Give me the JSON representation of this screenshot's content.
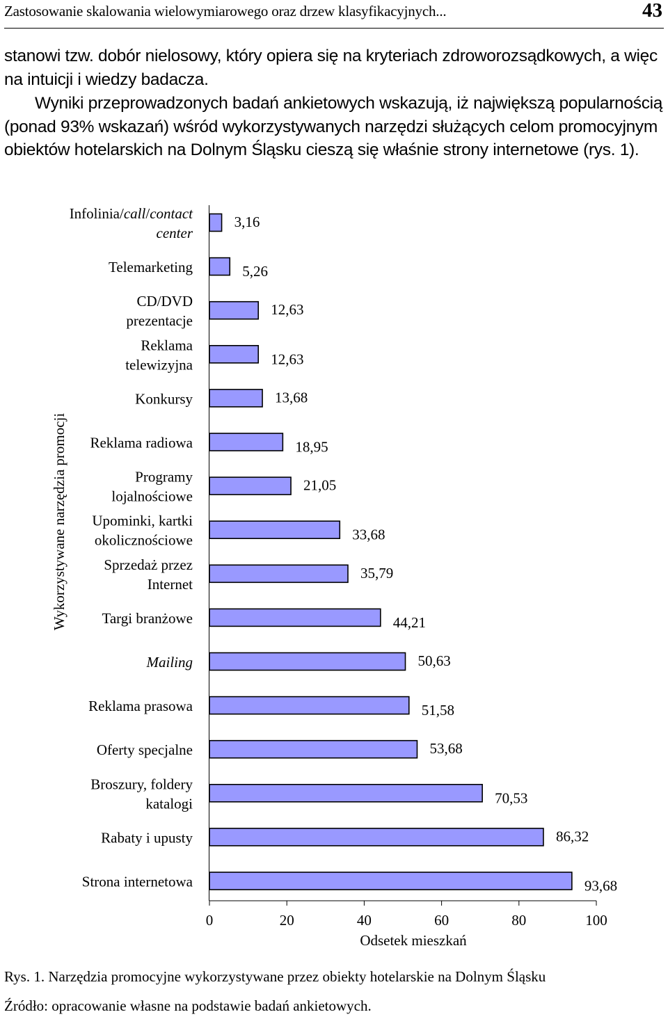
{
  "header": {
    "title": "Zastosowanie skalowania wielowymiarowego oraz drzew klasyfikacyjnych...",
    "page_number": "43"
  },
  "paragraphs": [
    "stanowi tzw. dobór nielosowy, który opiera się na kryteriach zdroworozsądkowych, a więc na intuicji i wiedzy badacza.",
    "Wyniki przeprowadzonych badań ankietowych wskazują, iż największą popularnością (ponad 93% wskazań) wśród wykorzystywanych narzędzi służących celom promocyjnym obiektów hotelarskich na Dolnym Śląsku cieszą się właśnie strony internetowe (rys. 1)."
  ],
  "chart_data": {
    "type": "bar",
    "orientation": "horizontal",
    "categories": [
      "Infolinia/call/contact center",
      "Telemarketing",
      "CD/DVD prezentacje",
      "Reklama telewizyjna",
      "Konkursy",
      "Reklama radiowa",
      "Programy lojalnościowe",
      "Upominki, kartki okolicznościowe",
      "Sprzedaż przez Internet",
      "Targi branżowe",
      "Mailing",
      "Reklama prasowa",
      "Oferty specjalne",
      "Broszury, foldery katalogi",
      "Rabaty i upusty",
      "Strona internetowa"
    ],
    "category_lines": [
      [
        "Infolinia/call/contact",
        "center"
      ],
      [
        "Telemarketing"
      ],
      [
        "CD/DVD",
        "prezentacje"
      ],
      [
        "Reklama",
        "telewizyjna"
      ],
      [
        "Konkursy"
      ],
      [
        "Reklama radiowa"
      ],
      [
        "Programy",
        "lojalnościowe"
      ],
      [
        "Upominki, kartki",
        "okolicznościowe"
      ],
      [
        "Sprzedaż przez",
        "Internet"
      ],
      [
        "Targi branżowe"
      ],
      [
        "Mailing"
      ],
      [
        "Reklama prasowa"
      ],
      [
        "Oferty specjalne"
      ],
      [
        "Broszury, foldery",
        "katalogi"
      ],
      [
        "Rabaty i upusty"
      ],
      [
        "Strona internetowa"
      ]
    ],
    "values": [
      3.16,
      5.26,
      12.63,
      12.63,
      13.68,
      18.95,
      21.05,
      33.68,
      35.79,
      44.21,
      50.63,
      51.58,
      53.68,
      70.53,
      86.32,
      93.68
    ],
    "value_labels": [
      "3,16",
      "5,26",
      "12,63",
      "12,63",
      "13,68",
      "18,95",
      "21,05",
      "33,68",
      "35,79",
      "44,21",
      "50,63",
      "51,58",
      "53,68",
      "70,53",
      "86,32",
      "93,68"
    ],
    "xlabel": "Odsetek mieszkań",
    "ylabel": "Wykorzystywane narzędzia promocji",
    "xlim": [
      0,
      100
    ],
    "xticks": [
      "0",
      "20",
      "40",
      "60",
      "80",
      "100"
    ],
    "grid": false,
    "legend": "none",
    "bar_color": "#9999ff"
  },
  "caption": "Rys. 1. Narzędzia promocyjne wykorzystywane przez obiekty hotelarskie na Dolnym Śląsku",
  "source": "Źródło: opracowanie własne na podstawie badań ankietowych."
}
